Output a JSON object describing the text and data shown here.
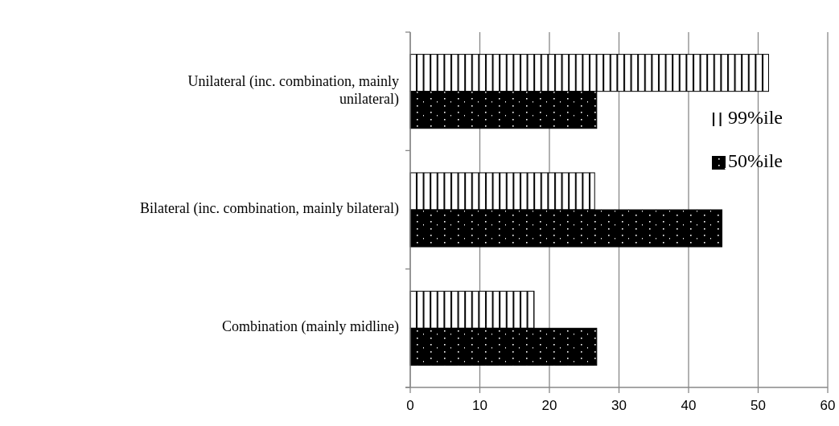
{
  "chart_data": {
    "type": "bar",
    "orientation": "horizontal",
    "categories": [
      "Unilateral (inc. combination, mainly unilateral)",
      "Bilateral (inc. combination, mainly bilateral)",
      "Combination (mainly midline)"
    ],
    "series": [
      {
        "name": "99%ile",
        "color": "#000000",
        "values": [
          51.5,
          26.5,
          17.8
        ]
      },
      {
        "name": "50%ile",
        "color": "#000000",
        "values": [
          26.8,
          44.8,
          26.8
        ]
      }
    ],
    "xlim": [
      0,
      60
    ],
    "xticks": [
      0,
      10,
      20,
      30,
      40,
      50,
      60
    ],
    "grid": "x",
    "legend": "right"
  }
}
